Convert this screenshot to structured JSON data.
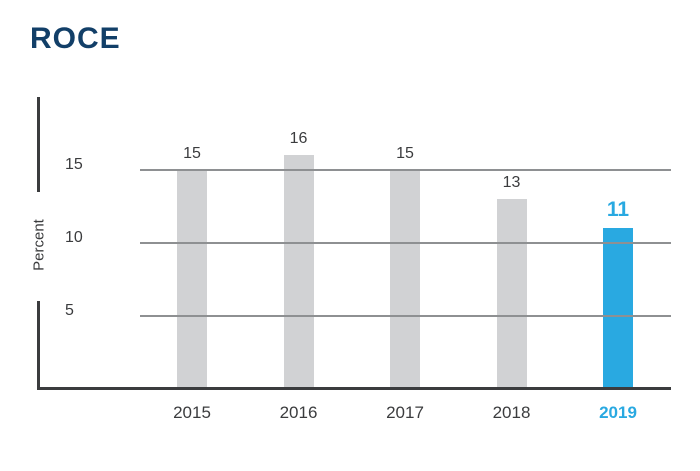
{
  "title": "ROCE",
  "colors": {
    "title_navy": "#123f68",
    "accent_blue": "#29a9e1",
    "bar_gray": "#d1d2d4",
    "gridline_gray": "#8e9092",
    "axis_dark": "#3b3c3e",
    "text_dark": "#3b3c3e",
    "background": "#ffffff"
  },
  "chart_data": {
    "type": "bar",
    "title": "ROCE",
    "categories": [
      "2015",
      "2016",
      "2017",
      "2018",
      "2019"
    ],
    "values": [
      15,
      16,
      15,
      13,
      11
    ],
    "value_labels": [
      "15",
      "16",
      "15",
      "13",
      "11"
    ],
    "highlight_category": "2019",
    "highlight_value": 11,
    "xlabel": "",
    "ylabel": "Percent",
    "yticks": [
      5,
      10,
      15
    ],
    "ytick_labels": [
      "5",
      "10",
      "15"
    ],
    "ylim": [
      0,
      20
    ],
    "grid": "horizontal-on-top-of-bars",
    "legend": "none",
    "unit": "Percent"
  }
}
